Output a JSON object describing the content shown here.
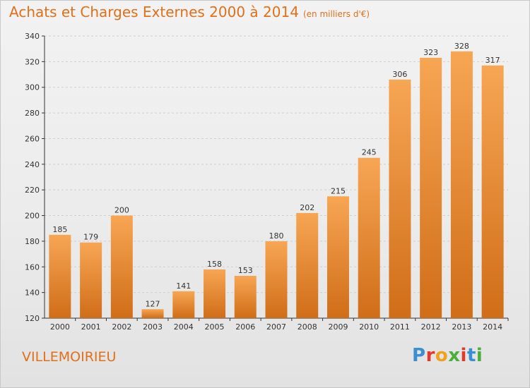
{
  "header": {
    "title": "Achats et Charges Externes 2000 à 2014",
    "unit": "(en milliers d'€)"
  },
  "place_name": "VILLEMOIRIEU",
  "logo": {
    "letters": [
      "P",
      "r",
      "o",
      "x",
      "i",
      "t",
      "i"
    ],
    "colors": [
      "#3a8fd0",
      "#e23a2a",
      "#f2a11c",
      "#4cae3a",
      "#e23a2a",
      "#3a8fd0",
      "#4cae3a"
    ]
  },
  "colors": {
    "bar_top": "#f7a654",
    "bar_bottom": "#d06d18",
    "title": "#e0701a",
    "axis": "#333333",
    "grid": "#cfcfcf"
  },
  "chart_data": {
    "type": "bar",
    "categories": [
      "2000",
      "2001",
      "2002",
      "2003",
      "2004",
      "2005",
      "2006",
      "2007",
      "2008",
      "2009",
      "2010",
      "2011",
      "2012",
      "2013",
      "2014"
    ],
    "values": [
      185,
      179,
      200,
      127,
      141,
      158,
      153,
      180,
      202,
      215,
      245,
      306,
      323,
      328,
      317
    ],
    "title": "Achats et Charges Externes 2000 à 2014",
    "ylim": [
      120,
      340
    ],
    "yticks": [
      120,
      140,
      160,
      180,
      200,
      220,
      240,
      260,
      280,
      300,
      320,
      340
    ],
    "grid": true
  }
}
